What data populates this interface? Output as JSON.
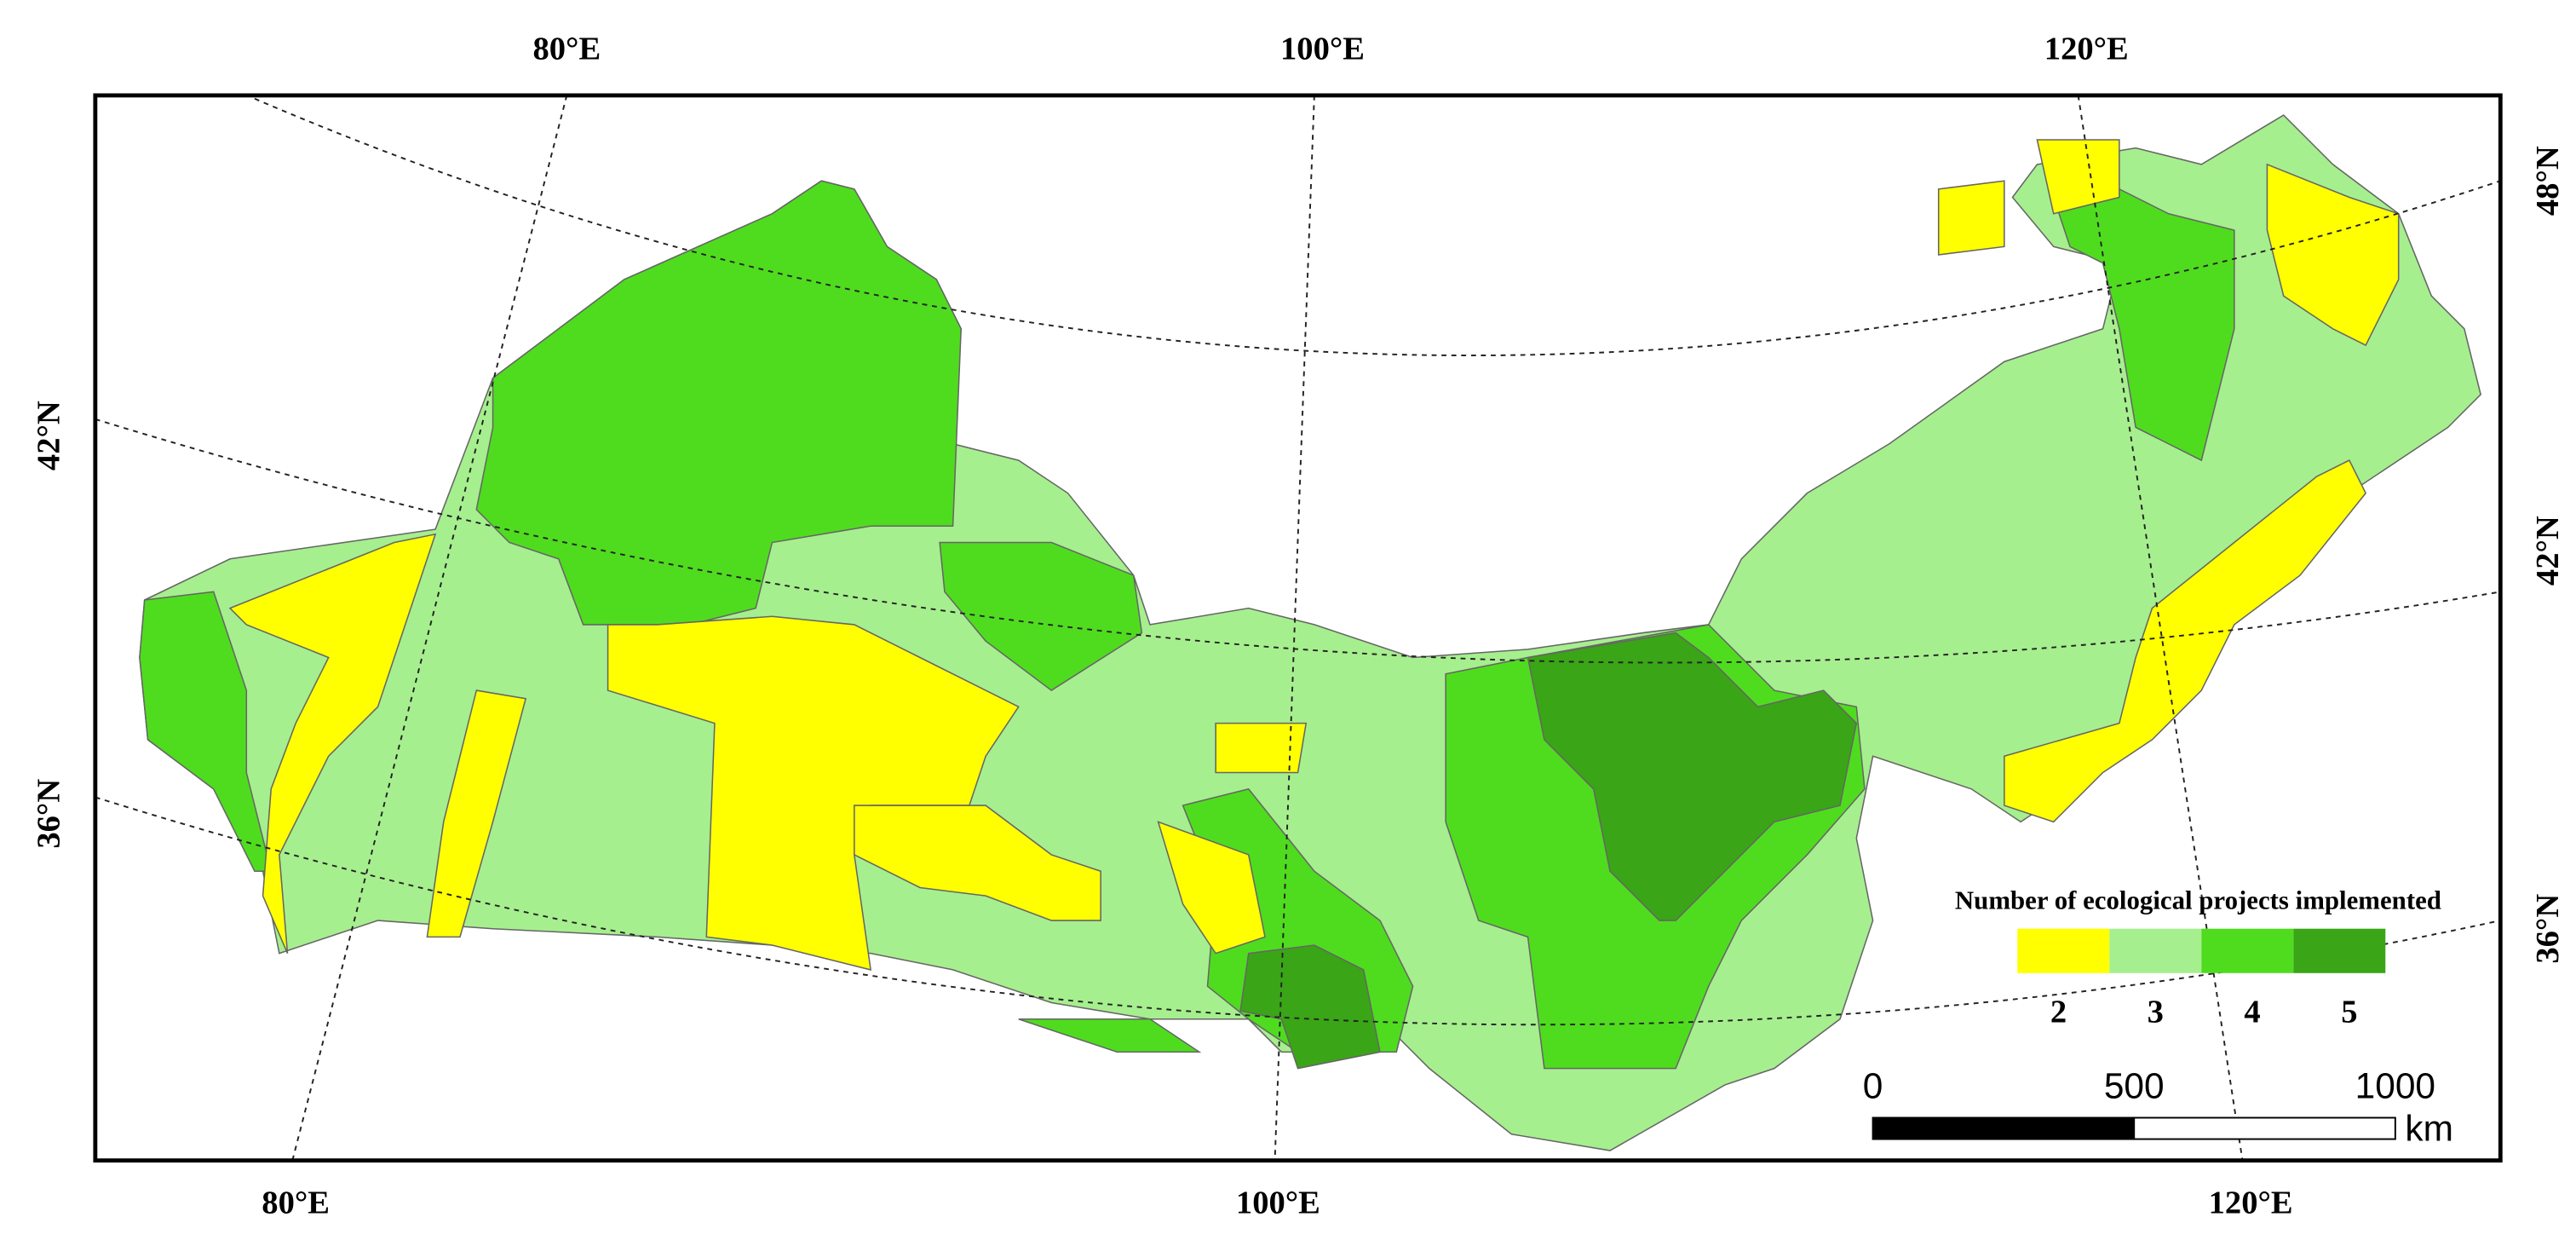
{
  "map": {
    "graticule": {
      "top": [
        "80°E",
        "100°E",
        "120°E"
      ],
      "bottom": [
        "80°E",
        "100°E",
        "120°E"
      ],
      "left": [
        "42°N",
        "36°N"
      ],
      "right": [
        "48°N",
        "42°N",
        "36°N"
      ]
    },
    "legend": {
      "title": "Number of ecological projects implemented",
      "classes": [
        {
          "value": 2,
          "color": "#ffff00"
        },
        {
          "value": 3,
          "color": "#a6ef8e"
        },
        {
          "value": 4,
          "color": "#4fdc1f"
        },
        {
          "value": 5,
          "color": "#3aa516"
        }
      ]
    },
    "scale_bar": {
      "ticks": [
        0,
        500,
        1000
      ],
      "unit": "km"
    }
  }
}
